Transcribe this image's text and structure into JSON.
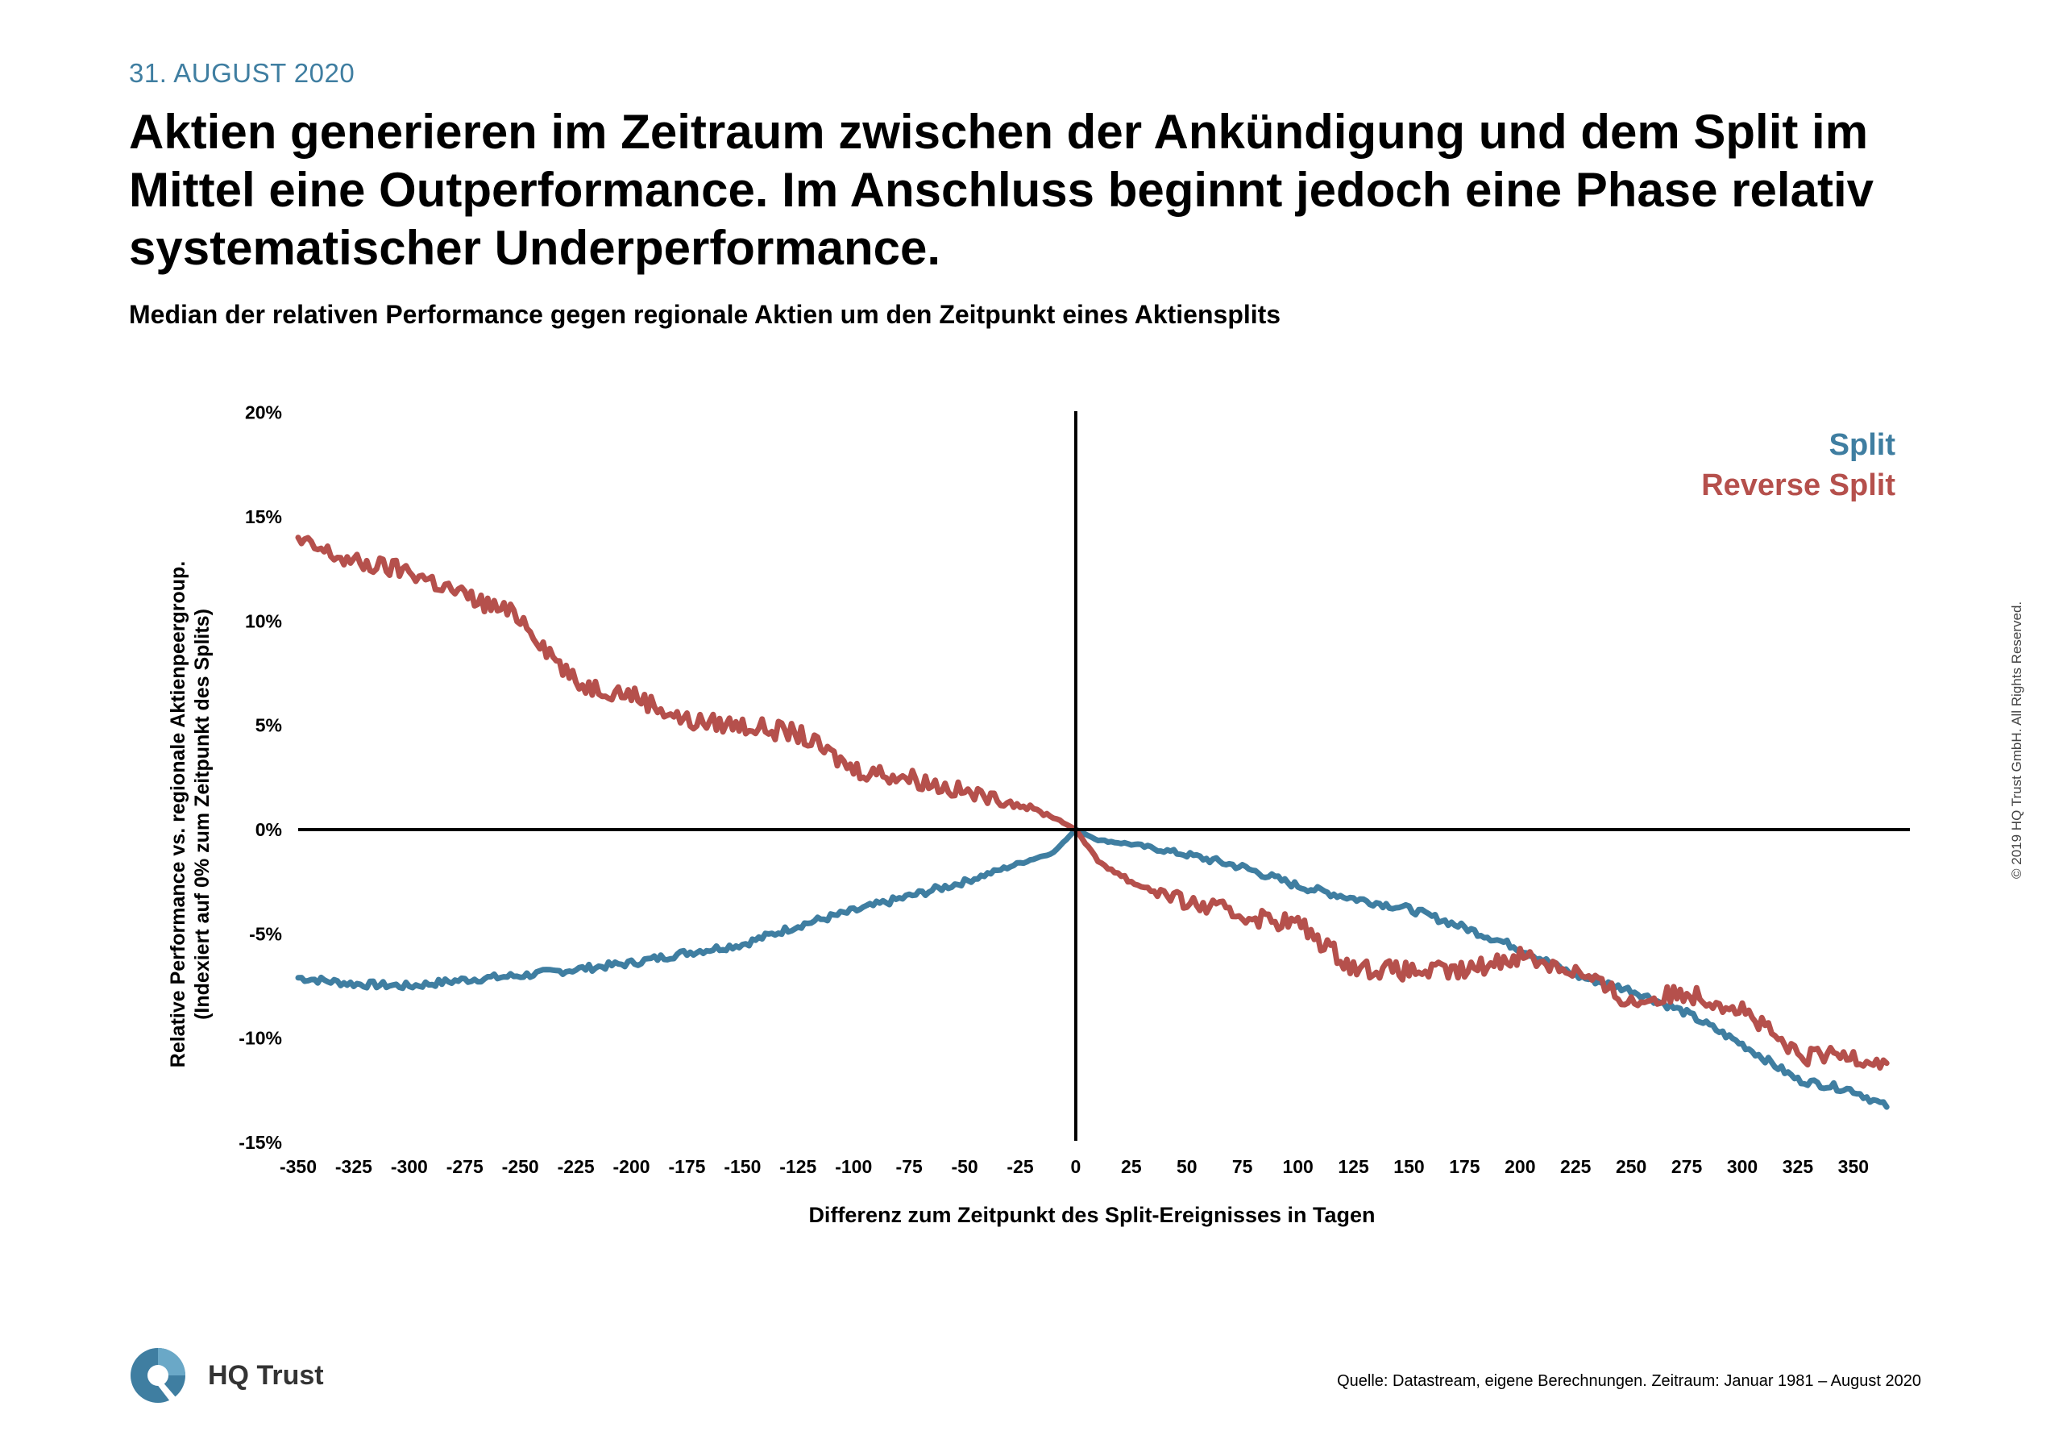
{
  "header": {
    "date": "31. AUGUST 2020",
    "headline": "Aktien generieren im Zeitraum zwischen der Ankündigung und dem Split im Mittel eine Outperformance. Im Anschluss beginnt jedoch eine Phase relativ systematischer Underperformance.",
    "subtitle": "Median der relativen Performance gegen regionale Aktien um den Zeitpunkt eines Aktiensplits"
  },
  "footer": {
    "source": "Quelle: Datastream, eigene Berechnungen. Zeitraum: Januar 1981 – August 2020",
    "copyright": "© 2019 HQ Trust GmbH. All Rights Reserved.",
    "logo_text": "HQ Trust"
  },
  "colors": {
    "split": "#3f7ea1",
    "reverse_split": "#b5504c",
    "accent": "#3f7ea1"
  },
  "chart_data": {
    "type": "line",
    "xlabel": "Differenz zum Zeitpunkt des Split-Ereignisses in Tagen",
    "ylabel": [
      "Relative Performance vs. regionale Aktienpeergroup.",
      "(Indexiert auf 0% zum Zeitpunkt des Splits)"
    ],
    "xlim": [
      -350,
      365
    ],
    "ylim": [
      -15,
      20
    ],
    "x_ticks": [
      -350,
      -325,
      -300,
      -275,
      -250,
      -225,
      -200,
      -175,
      -150,
      -125,
      -100,
      -75,
      -50,
      -25,
      0,
      25,
      50,
      75,
      100,
      125,
      150,
      175,
      200,
      225,
      250,
      275,
      300,
      325,
      350
    ],
    "y_ticks": [
      -15,
      -10,
      -5,
      0,
      5,
      10,
      15,
      20
    ],
    "y_tick_labels": [
      "-15%",
      "-10%",
      "-5%",
      "0%",
      "5%",
      "10%",
      "15%",
      "20%"
    ],
    "legend_position": "top-right",
    "series": [
      {
        "name": "Split",
        "color": "#3f7ea1",
        "x": [
          -350,
          -325,
          -300,
          -275,
          -250,
          -225,
          -200,
          -175,
          -150,
          -125,
          -100,
          -75,
          -50,
          -25,
          -10,
          0,
          10,
          25,
          50,
          75,
          100,
          125,
          150,
          175,
          200,
          225,
          250,
          275,
          300,
          325,
          350,
          365
        ],
        "y": [
          -7.1,
          -7.4,
          -7.5,
          -7.2,
          -7.0,
          -6.7,
          -6.4,
          -5.9,
          -5.5,
          -4.6,
          -3.9,
          -3.2,
          -2.5,
          -1.6,
          -1.1,
          0.0,
          -0.5,
          -0.7,
          -1.2,
          -1.8,
          -2.7,
          -3.3,
          -3.8,
          -4.7,
          -5.7,
          -7.0,
          -7.7,
          -8.8,
          -10.3,
          -12.0,
          -12.5,
          -13.3
        ]
      },
      {
        "name": "Reverse Split",
        "color": "#b5504c",
        "x": [
          -350,
          -325,
          -300,
          -275,
          -250,
          -225,
          -200,
          -175,
          -150,
          -125,
          -100,
          -75,
          -50,
          -25,
          -10,
          0,
          10,
          25,
          50,
          75,
          100,
          125,
          150,
          175,
          200,
          225,
          250,
          275,
          300,
          325,
          350,
          365
        ],
        "y": [
          13.8,
          12.8,
          12.4,
          11.2,
          10.2,
          7.0,
          6.5,
          5.2,
          5.0,
          4.6,
          2.9,
          2.5,
          1.8,
          1.2,
          0.6,
          0.0,
          -1.5,
          -2.5,
          -3.5,
          -4.1,
          -4.5,
          -6.6,
          -6.8,
          -6.8,
          -6.0,
          -6.8,
          -8.3,
          -7.8,
          -8.6,
          -10.9,
          -10.8,
          -11.2
        ]
      }
    ]
  }
}
